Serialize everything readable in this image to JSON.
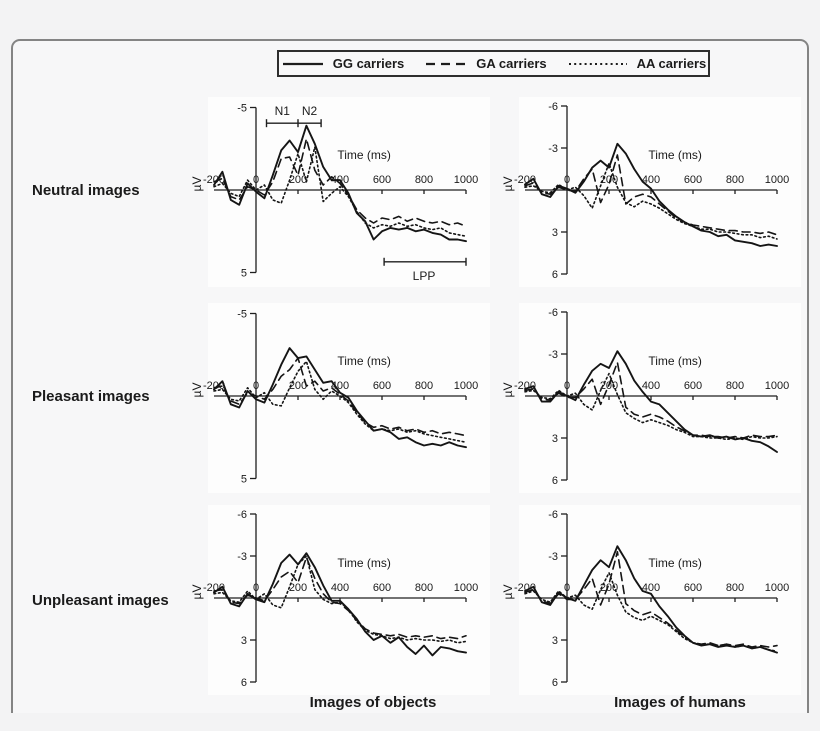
{
  "figure": {
    "row_labels": [
      "Neutral images",
      "Pleasant images",
      "Unpleasant images"
    ],
    "col_labels": [
      "Images of objects",
      "Images of humans"
    ],
    "line_color": "#151515",
    "background": "#f3f3f4"
  },
  "legend": {
    "items": [
      {
        "label": "GG carriers",
        "style": "solid"
      },
      {
        "label": "GA carriers",
        "style": "dashed"
      },
      {
        "label": "AA carriers",
        "style": "dotted"
      }
    ]
  },
  "chart_data": [
    {
      "id": "neutral-objects",
      "type": "line",
      "row": "Neutral images",
      "col": "Images of objects",
      "xlabel": "Time (ms)",
      "ylabel": "µV",
      "xlim": [
        -200,
        1000
      ],
      "ylim": 5,
      "xticks": [
        -200,
        0,
        200,
        400,
        600,
        800,
        1000
      ],
      "yticks": [
        -5,
        5
      ],
      "x_start": -200,
      "x_step": 40,
      "series": [
        {
          "name": "GG carriers",
          "style": "solid",
          "values": [
            -0.3,
            -1.1,
            0.6,
            0.9,
            -0.4,
            0.1,
            0.5,
            -0.9,
            -2.4,
            -3.0,
            -2.3,
            -3.9,
            -2.8,
            -1.4,
            -0.6,
            -0.6,
            0.2,
            1.4,
            1.9,
            3.0,
            2.5,
            2.3,
            2.4,
            2.3,
            2.5,
            2.4,
            2.6,
            2.7,
            3.0,
            3.0,
            3.1
          ]
        },
        {
          "name": "GA carriers",
          "style": "dashed",
          "values": [
            -0.5,
            -0.7,
            0.4,
            0.6,
            -0.2,
            0.0,
            0.3,
            -0.5,
            -1.9,
            -2.0,
            -0.9,
            -3.1,
            -1.2,
            -0.3,
            -0.8,
            -0.4,
            0.3,
            1.2,
            1.7,
            2.0,
            1.7,
            1.8,
            1.6,
            1.9,
            1.7,
            1.9,
            2.0,
            1.9,
            2.1,
            2.0,
            2.2
          ]
        },
        {
          "name": "AA carriers",
          "style": "dotted",
          "values": [
            -0.2,
            -0.4,
            0.2,
            0.4,
            -0.6,
            0.0,
            -0.3,
            0.6,
            0.8,
            -0.6,
            -2.2,
            -0.5,
            -2.6,
            0.7,
            0.2,
            -0.2,
            0.4,
            1.3,
            2.0,
            2.3,
            2.1,
            2.2,
            2.0,
            2.2,
            2.1,
            2.3,
            2.4,
            2.3,
            2.6,
            2.7,
            2.8
          ]
        }
      ],
      "annotations": {
        "windows": [
          {
            "label": "N1",
            "from": 50,
            "to": 200
          },
          {
            "label": "N2",
            "from": 200,
            "to": 310
          }
        ],
        "windows_v": -4.05,
        "windows_label_v": -4.55,
        "lpp": {
          "label": "LPP",
          "from": 610,
          "to": 1000,
          "v": 4.35,
          "label_t": 800,
          "label_v": 5.45
        }
      }
    },
    {
      "id": "neutral-humans",
      "type": "line",
      "row": "Neutral images",
      "col": "Images of humans",
      "xlabel": "Time (ms)",
      "ylabel": "µV",
      "xlim": [
        -200,
        1000
      ],
      "ylim": 6,
      "xticks": [
        -200,
        0,
        200,
        400,
        600,
        800,
        1000
      ],
      "yticks": [
        -6,
        -3,
        3,
        6
      ],
      "x_start": -200,
      "x_step": 40,
      "series": [
        {
          "name": "GG carriers",
          "style": "solid",
          "values": [
            -0.4,
            -0.8,
            0.3,
            0.5,
            -0.3,
            -0.1,
            0.2,
            -0.6,
            -1.6,
            -2.1,
            -1.6,
            -3.3,
            -2.6,
            -1.5,
            -0.6,
            -0.1,
            0.8,
            1.4,
            1.9,
            2.3,
            2.6,
            2.9,
            3.0,
            3.3,
            3.2,
            3.6,
            3.7,
            3.8,
            4.0,
            3.9,
            4.0
          ]
        },
        {
          "name": "GA carriers",
          "style": "dashed",
          "values": [
            -0.3,
            -0.5,
            0.2,
            0.3,
            -0.2,
            0.0,
            0.1,
            -0.8,
            -1.5,
            0.9,
            -0.4,
            -2.5,
            1.0,
            0.5,
            0.3,
            0.5,
            1.0,
            1.5,
            2.0,
            2.3,
            2.5,
            2.6,
            2.7,
            2.8,
            2.9,
            2.9,
            3.0,
            3.0,
            3.1,
            3.0,
            3.2
          ]
        },
        {
          "name": "AA carriers",
          "style": "dotted",
          "values": [
            -0.2,
            -0.3,
            0.1,
            0.2,
            -0.4,
            0.0,
            -0.2,
            0.4,
            1.3,
            -0.3,
            -1.9,
            -0.2,
            0.9,
            1.2,
            0.8,
            1.0,
            1.3,
            1.7,
            2.1,
            2.4,
            2.6,
            2.8,
            2.8,
            3.0,
            3.0,
            3.1,
            3.2,
            3.2,
            3.4,
            3.3,
            3.5
          ]
        }
      ]
    },
    {
      "id": "pleasant-objects",
      "type": "line",
      "row": "Pleasant images",
      "col": "Images of objects",
      "xlabel": "Time (ms)",
      "ylabel": "µV",
      "xlim": [
        -200,
        1000
      ],
      "ylim": 5,
      "xticks": [
        -200,
        0,
        200,
        400,
        600,
        800,
        1000
      ],
      "yticks": [
        -5,
        5
      ],
      "x_start": -200,
      "x_step": 40,
      "series": [
        {
          "name": "GG carriers",
          "style": "solid",
          "values": [
            -0.4,
            -0.9,
            0.5,
            0.7,
            -0.3,
            0.2,
            0.4,
            -0.7,
            -1.9,
            -2.9,
            -2.3,
            -2.4,
            -1.6,
            -0.8,
            -0.9,
            -0.2,
            0.1,
            0.9,
            1.5,
            2.1,
            2.0,
            2.2,
            2.6,
            2.5,
            2.8,
            3.0,
            2.9,
            3.0,
            2.8,
            3.0,
            3.1
          ]
        },
        {
          "name": "GA carriers",
          "style": "dashed",
          "values": [
            -0.5,
            -0.6,
            0.3,
            0.5,
            -0.2,
            0.0,
            0.2,
            -0.4,
            -1.2,
            -1.6,
            -2.3,
            -0.6,
            -0.9,
            -0.3,
            -0.5,
            -0.1,
            0.3,
            1.0,
            1.6,
            1.9,
            1.8,
            2.0,
            1.9,
            2.1,
            2.0,
            2.2,
            2.1,
            2.3,
            2.2,
            2.3,
            2.4
          ]
        },
        {
          "name": "AA carriers",
          "style": "dotted",
          "values": [
            -0.3,
            -0.4,
            0.2,
            0.3,
            -0.5,
            0.1,
            -0.2,
            0.5,
            0.6,
            -0.5,
            -1.5,
            -2.1,
            -0.4,
            0.2,
            -0.3,
            0.0,
            0.4,
            1.1,
            1.7,
            2.1,
            2.0,
            2.1,
            2.0,
            2.2,
            2.1,
            2.3,
            2.4,
            2.5,
            2.6,
            2.7,
            2.8
          ]
        }
      ]
    },
    {
      "id": "pleasant-humans",
      "type": "line",
      "row": "Pleasant images",
      "col": "Images of humans",
      "xlabel": "Time (ms)",
      "ylabel": "µV",
      "xlim": [
        -200,
        1000
      ],
      "ylim": 6,
      "xticks": [
        -200,
        0,
        200,
        400,
        600,
        800,
        1000
      ],
      "yticks": [
        -6,
        -3,
        3,
        6
      ],
      "x_start": -200,
      "x_step": 40,
      "series": [
        {
          "name": "GG carriers",
          "style": "solid",
          "values": [
            -0.5,
            -0.7,
            0.4,
            0.4,
            -0.3,
            0.0,
            0.3,
            -0.8,
            -1.8,
            -2.3,
            -2.0,
            -3.2,
            -2.3,
            -1.1,
            -0.3,
            0.4,
            0.6,
            1.2,
            1.8,
            2.4,
            2.8,
            2.9,
            2.8,
            3.0,
            2.9,
            3.1,
            3.0,
            3.2,
            3.3,
            3.6,
            4.0
          ]
        },
        {
          "name": "GA carriers",
          "style": "dashed",
          "values": [
            -0.4,
            -0.5,
            0.2,
            0.3,
            -0.2,
            0.1,
            0.1,
            -0.5,
            -1.2,
            0.6,
            -0.8,
            -2.4,
            0.8,
            1.3,
            1.5,
            1.3,
            1.5,
            1.8,
            2.2,
            2.5,
            2.8,
            2.8,
            2.9,
            2.9,
            3.0,
            2.9,
            3.0,
            2.8,
            2.9,
            2.9,
            2.8
          ]
        },
        {
          "name": "AA carriers",
          "style": "dotted",
          "values": [
            -0.3,
            -0.4,
            0.1,
            0.2,
            -0.4,
            0.0,
            -0.2,
            0.6,
            1.0,
            -0.4,
            -1.6,
            -0.1,
            1.2,
            1.6,
            1.9,
            1.7,
            1.9,
            2.1,
            2.4,
            2.6,
            2.9,
            2.9,
            3.0,
            3.0,
            3.1,
            3.0,
            3.1,
            2.9,
            3.0,
            3.0,
            2.9
          ]
        }
      ]
    },
    {
      "id": "unpleasant-objects",
      "type": "line",
      "row": "Unpleasant images",
      "col": "Images of objects",
      "xlabel": "Time (ms)",
      "ylabel": "µV",
      "xlim": [
        -200,
        1000
      ],
      "ylim": 6,
      "xticks": [
        -200,
        0,
        200,
        400,
        600,
        800,
        1000
      ],
      "yticks": [
        -6,
        -3,
        3,
        6
      ],
      "x_start": -200,
      "x_step": 40,
      "series": [
        {
          "name": "GG carriers",
          "style": "solid",
          "values": [
            -0.4,
            -0.8,
            0.4,
            0.6,
            -0.3,
            0.1,
            0.3,
            -1.0,
            -2.5,
            -3.1,
            -2.4,
            -3.2,
            -2.2,
            -0.9,
            0.2,
            0.2,
            0.8,
            1.5,
            2.4,
            3.0,
            2.7,
            3.2,
            2.8,
            3.5,
            4.0,
            3.4,
            4.1,
            3.5,
            3.6,
            3.8,
            3.9
          ]
        },
        {
          "name": "GA carriers",
          "style": "dashed",
          "values": [
            -0.5,
            -0.6,
            0.3,
            0.4,
            -0.2,
            0.0,
            0.2,
            -0.6,
            -1.5,
            -1.9,
            -1.1,
            -2.9,
            -1.4,
            -0.3,
            0.3,
            0.4,
            0.9,
            1.6,
            2.2,
            2.5,
            2.6,
            2.7,
            2.6,
            2.8,
            2.7,
            2.8,
            2.7,
            2.9,
            2.8,
            2.9,
            2.7
          ]
        },
        {
          "name": "AA carriers",
          "style": "dotted",
          "values": [
            -0.3,
            -0.4,
            0.2,
            0.3,
            -0.5,
            0.1,
            -0.3,
            0.5,
            0.7,
            -0.8,
            -2.4,
            -3.0,
            -0.6,
            0.1,
            0.4,
            0.3,
            0.8,
            1.7,
            2.3,
            2.6,
            2.7,
            2.9,
            2.8,
            3.0,
            2.9,
            3.0,
            3.0,
            3.1,
            3.0,
            3.2,
            3.1
          ]
        }
      ]
    },
    {
      "id": "unpleasant-humans",
      "type": "line",
      "row": "Unpleasant images",
      "col": "Images of humans",
      "xlabel": "Time (ms)",
      "ylabel": "µV",
      "xlim": [
        -200,
        1000
      ],
      "ylim": 6,
      "xticks": [
        -200,
        0,
        200,
        400,
        600,
        800,
        1000
      ],
      "yticks": [
        -6,
        -3,
        3,
        6
      ],
      "x_start": -200,
      "x_step": 40,
      "series": [
        {
          "name": "GG carriers",
          "style": "solid",
          "values": [
            -0.5,
            -0.8,
            0.3,
            0.5,
            -0.4,
            0.0,
            0.2,
            -0.9,
            -2.0,
            -2.7,
            -2.2,
            -3.7,
            -2.7,
            -1.4,
            -0.5,
            -0.3,
            0.6,
            1.3,
            2.1,
            2.7,
            3.2,
            3.4,
            3.3,
            3.5,
            3.4,
            3.5,
            3.4,
            3.6,
            3.5,
            3.7,
            3.9
          ]
        },
        {
          "name": "GA carriers",
          "style": "dashed",
          "values": [
            -0.4,
            -0.6,
            0.2,
            0.4,
            -0.3,
            0.1,
            0.1,
            -0.6,
            -1.4,
            0.5,
            -1.0,
            -3.3,
            0.4,
            0.9,
            1.2,
            1.0,
            1.4,
            1.8,
            2.3,
            2.8,
            3.2,
            3.3,
            3.2,
            3.4,
            3.3,
            3.4,
            3.3,
            3.5,
            3.4,
            3.5,
            3.4
          ]
        },
        {
          "name": "AA carriers",
          "style": "dotted",
          "values": [
            -0.3,
            -0.5,
            0.1,
            0.3,
            -0.5,
            0.0,
            -0.2,
            0.5,
            0.8,
            -0.6,
            -1.8,
            -0.2,
            1.0,
            1.4,
            1.6,
            1.3,
            1.6,
            1.9,
            2.4,
            2.9,
            3.2,
            3.3,
            3.3,
            3.4,
            3.3,
            3.5,
            3.4,
            3.6,
            3.5,
            3.7,
            3.8
          ]
        }
      ]
    }
  ]
}
